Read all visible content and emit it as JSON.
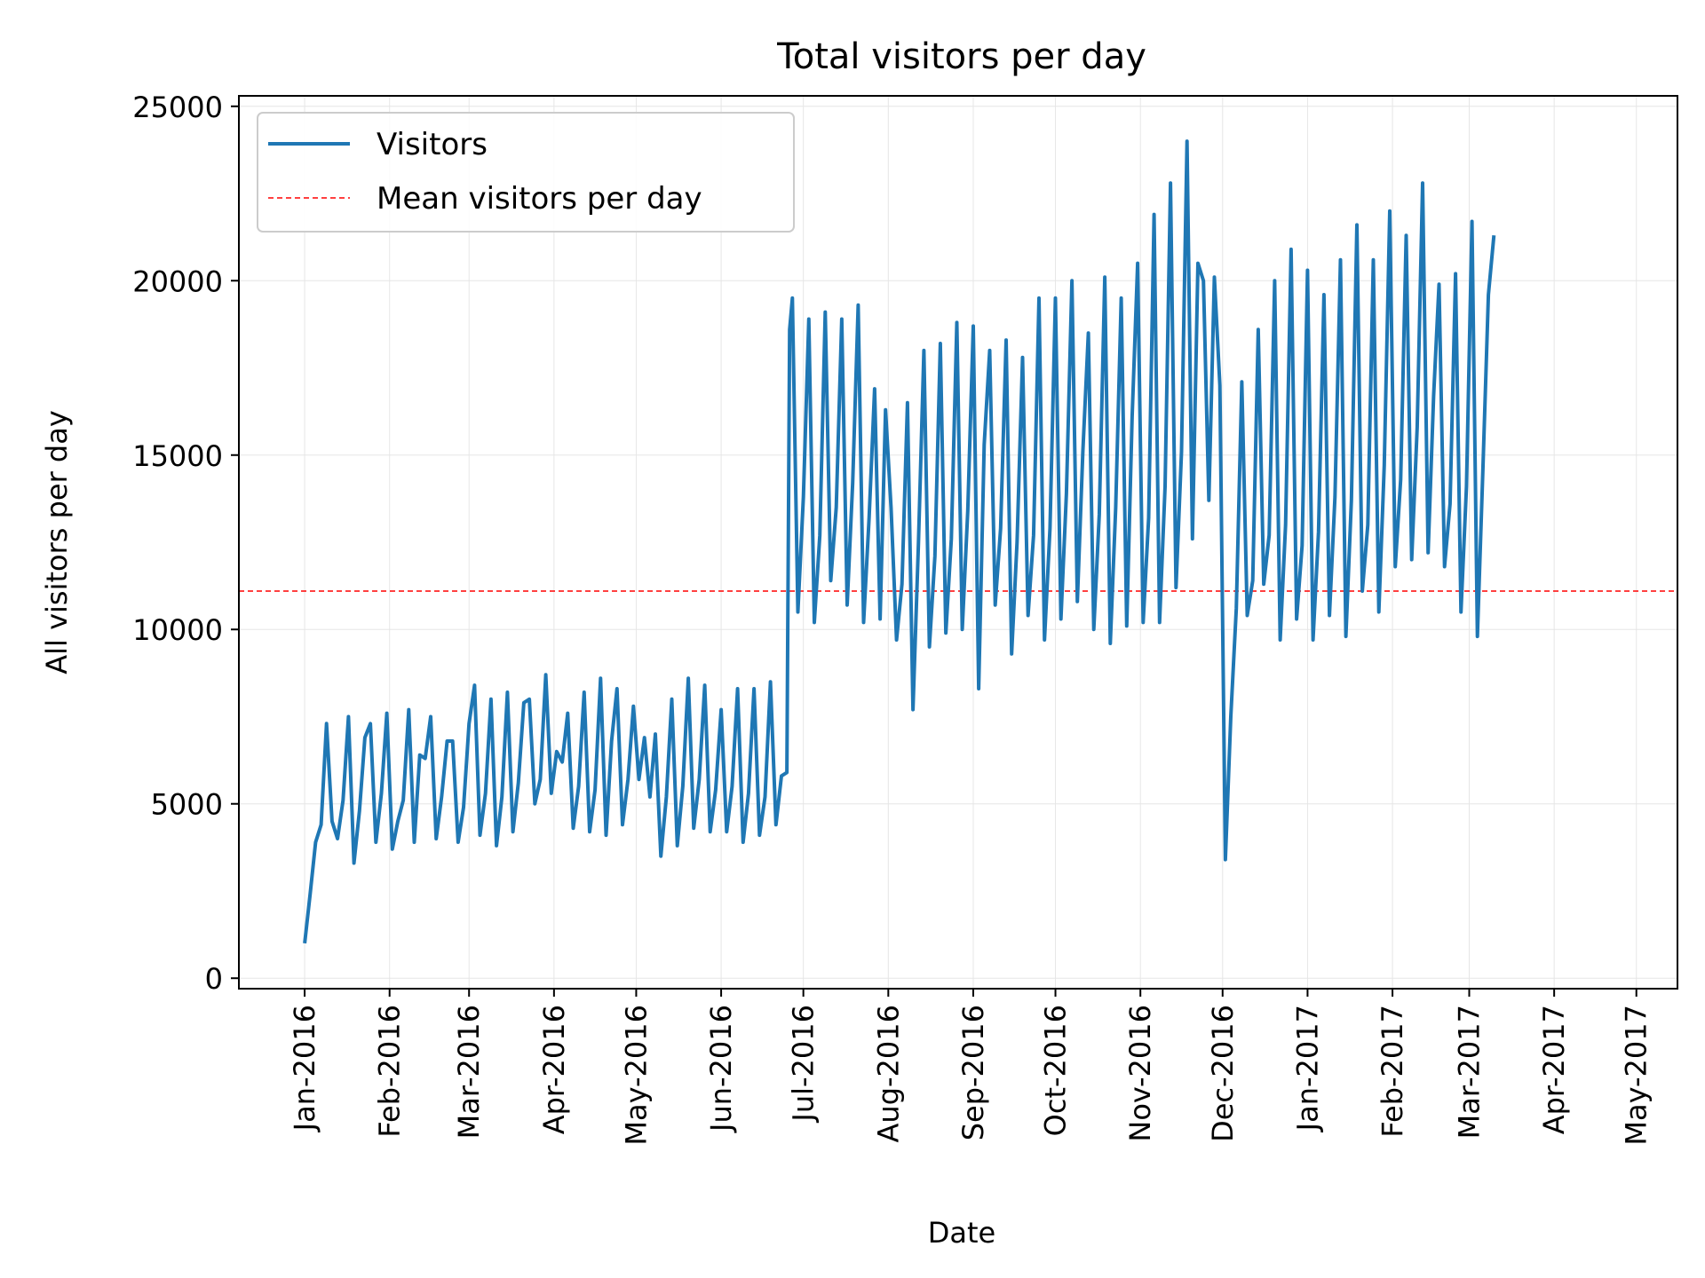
{
  "chart_data": {
    "type": "line",
    "title": "Total visitors per day",
    "xlabel": "Date",
    "ylabel": "All visitors per day",
    "x_tick_labels": [
      "Jan-2016",
      "Feb-2016",
      "Mar-2016",
      "Apr-2016",
      "May-2016",
      "Jun-2016",
      "Jul-2016",
      "Aug-2016",
      "Sep-2016",
      "Oct-2016",
      "Nov-2016",
      "Dec-2016",
      "Jan-2017",
      "Feb-2017",
      "Mar-2017",
      "Apr-2017",
      "May-2017"
    ],
    "x_tick_dates": [
      "2016-01-01",
      "2016-02-01",
      "2016-03-01",
      "2016-04-01",
      "2016-05-01",
      "2016-06-01",
      "2016-07-01",
      "2016-08-01",
      "2016-09-01",
      "2016-10-01",
      "2016-11-01",
      "2016-12-01",
      "2017-01-01",
      "2017-02-01",
      "2017-03-01",
      "2017-04-01",
      "2017-05-01"
    ],
    "y_ticks": [
      0,
      5000,
      10000,
      15000,
      20000,
      25000
    ],
    "xlim": [
      "2015-12-08",
      "2017-05-16"
    ],
    "ylim": [
      -300,
      25300
    ],
    "grid": true,
    "legend_position": "upper-left",
    "series": [
      {
        "name": "Visitors",
        "color": "#1f77b4",
        "style": "solid",
        "points": [
          [
            "2016-01-01",
            1000
          ],
          [
            "2016-01-03",
            2400
          ],
          [
            "2016-01-05",
            3900
          ],
          [
            "2016-01-07",
            4400
          ],
          [
            "2016-01-09",
            7300
          ],
          [
            "2016-01-11",
            4500
          ],
          [
            "2016-01-13",
            4000
          ],
          [
            "2016-01-15",
            5100
          ],
          [
            "2016-01-17",
            7500
          ],
          [
            "2016-01-19",
            3300
          ],
          [
            "2016-01-21",
            4800
          ],
          [
            "2016-01-23",
            6900
          ],
          [
            "2016-01-25",
            7300
          ],
          [
            "2016-01-27",
            3900
          ],
          [
            "2016-01-29",
            5300
          ],
          [
            "2016-01-31",
            7600
          ],
          [
            "2016-02-02",
            3700
          ],
          [
            "2016-02-04",
            4500
          ],
          [
            "2016-02-06",
            5100
          ],
          [
            "2016-02-08",
            7700
          ],
          [
            "2016-02-10",
            3900
          ],
          [
            "2016-02-12",
            6400
          ],
          [
            "2016-02-14",
            6300
          ],
          [
            "2016-02-16",
            7500
          ],
          [
            "2016-02-18",
            4000
          ],
          [
            "2016-02-20",
            5200
          ],
          [
            "2016-02-22",
            6800
          ],
          [
            "2016-02-24",
            6800
          ],
          [
            "2016-02-26",
            3900
          ],
          [
            "2016-02-28",
            4900
          ],
          [
            "2016-03-01",
            7300
          ],
          [
            "2016-03-03",
            8400
          ],
          [
            "2016-03-05",
            4100
          ],
          [
            "2016-03-07",
            5300
          ],
          [
            "2016-03-09",
            8000
          ],
          [
            "2016-03-11",
            3800
          ],
          [
            "2016-03-13",
            5200
          ],
          [
            "2016-03-15",
            8200
          ],
          [
            "2016-03-17",
            4200
          ],
          [
            "2016-03-19",
            5600
          ],
          [
            "2016-03-21",
            7900
          ],
          [
            "2016-03-23",
            8000
          ],
          [
            "2016-03-25",
            5000
          ],
          [
            "2016-03-27",
            5700
          ],
          [
            "2016-03-29",
            8700
          ],
          [
            "2016-03-31",
            5300
          ],
          [
            "2016-04-02",
            6500
          ],
          [
            "2016-04-04",
            6200
          ],
          [
            "2016-04-06",
            7600
          ],
          [
            "2016-04-08",
            4300
          ],
          [
            "2016-04-10",
            5500
          ],
          [
            "2016-04-12",
            8200
          ],
          [
            "2016-04-14",
            4200
          ],
          [
            "2016-04-16",
            5400
          ],
          [
            "2016-04-18",
            8600
          ],
          [
            "2016-04-20",
            4100
          ],
          [
            "2016-04-22",
            6800
          ],
          [
            "2016-04-24",
            8300
          ],
          [
            "2016-04-26",
            4400
          ],
          [
            "2016-04-28",
            5700
          ],
          [
            "2016-04-30",
            7800
          ],
          [
            "2016-05-02",
            5700
          ],
          [
            "2016-05-04",
            6900
          ],
          [
            "2016-05-06",
            5200
          ],
          [
            "2016-05-08",
            7000
          ],
          [
            "2016-05-10",
            3500
          ],
          [
            "2016-05-12",
            5200
          ],
          [
            "2016-05-14",
            8000
          ],
          [
            "2016-05-16",
            3800
          ],
          [
            "2016-05-18",
            5500
          ],
          [
            "2016-05-20",
            8600
          ],
          [
            "2016-05-22",
            4300
          ],
          [
            "2016-05-24",
            5700
          ],
          [
            "2016-05-26",
            8400
          ],
          [
            "2016-05-28",
            4200
          ],
          [
            "2016-05-30",
            5400
          ],
          [
            "2016-06-01",
            7700
          ],
          [
            "2016-06-03",
            4200
          ],
          [
            "2016-06-05",
            5500
          ],
          [
            "2016-06-07",
            8300
          ],
          [
            "2016-06-09",
            3900
          ],
          [
            "2016-06-11",
            5300
          ],
          [
            "2016-06-13",
            8300
          ],
          [
            "2016-06-15",
            4100
          ],
          [
            "2016-06-17",
            5200
          ],
          [
            "2016-06-19",
            8500
          ],
          [
            "2016-06-21",
            4400
          ],
          [
            "2016-06-23",
            5800
          ],
          [
            "2016-06-25",
            5900
          ],
          [
            "2016-06-26",
            18600
          ],
          [
            "2016-06-27",
            19500
          ],
          [
            "2016-06-29",
            10500
          ],
          [
            "2016-07-01",
            13800
          ],
          [
            "2016-07-03",
            18900
          ],
          [
            "2016-07-05",
            10200
          ],
          [
            "2016-07-07",
            12700
          ],
          [
            "2016-07-09",
            19100
          ],
          [
            "2016-07-11",
            11400
          ],
          [
            "2016-07-13",
            13500
          ],
          [
            "2016-07-15",
            18900
          ],
          [
            "2016-07-17",
            10700
          ],
          [
            "2016-07-19",
            14200
          ],
          [
            "2016-07-21",
            19300
          ],
          [
            "2016-07-23",
            10200
          ],
          [
            "2016-07-25",
            13200
          ],
          [
            "2016-07-27",
            16900
          ],
          [
            "2016-07-29",
            10300
          ],
          [
            "2016-07-31",
            16300
          ],
          [
            "2016-08-02",
            13500
          ],
          [
            "2016-08-04",
            9700
          ],
          [
            "2016-08-06",
            11300
          ],
          [
            "2016-08-08",
            16500
          ],
          [
            "2016-08-10",
            7700
          ],
          [
            "2016-08-12",
            12500
          ],
          [
            "2016-08-14",
            18000
          ],
          [
            "2016-08-16",
            9500
          ],
          [
            "2016-08-18",
            12100
          ],
          [
            "2016-08-20",
            18200
          ],
          [
            "2016-08-22",
            9900
          ],
          [
            "2016-08-24",
            12600
          ],
          [
            "2016-08-26",
            18800
          ],
          [
            "2016-08-28",
            10000
          ],
          [
            "2016-08-30",
            13400
          ],
          [
            "2016-09-01",
            18700
          ],
          [
            "2016-09-03",
            8300
          ],
          [
            "2016-09-05",
            15300
          ],
          [
            "2016-09-07",
            18000
          ],
          [
            "2016-09-09",
            10700
          ],
          [
            "2016-09-11",
            12900
          ],
          [
            "2016-09-13",
            18300
          ],
          [
            "2016-09-15",
            9300
          ],
          [
            "2016-09-17",
            12500
          ],
          [
            "2016-09-19",
            17800
          ],
          [
            "2016-09-21",
            10400
          ],
          [
            "2016-09-23",
            12700
          ],
          [
            "2016-09-25",
            19500
          ],
          [
            "2016-09-27",
            9700
          ],
          [
            "2016-09-29",
            12900
          ],
          [
            "2016-10-01",
            19500
          ],
          [
            "2016-10-03",
            10300
          ],
          [
            "2016-10-05",
            13900
          ],
          [
            "2016-10-07",
            20000
          ],
          [
            "2016-10-09",
            10800
          ],
          [
            "2016-10-11",
            15100
          ],
          [
            "2016-10-13",
            18500
          ],
          [
            "2016-10-15",
            10000
          ],
          [
            "2016-10-17",
            13300
          ],
          [
            "2016-10-19",
            20100
          ],
          [
            "2016-10-21",
            9600
          ],
          [
            "2016-10-23",
            13500
          ],
          [
            "2016-10-25",
            19500
          ],
          [
            "2016-10-27",
            10100
          ],
          [
            "2016-10-29",
            16100
          ],
          [
            "2016-10-31",
            20500
          ],
          [
            "2016-11-02",
            10200
          ],
          [
            "2016-11-04",
            13200
          ],
          [
            "2016-11-06",
            21900
          ],
          [
            "2016-11-08",
            10200
          ],
          [
            "2016-11-10",
            14100
          ],
          [
            "2016-11-12",
            22800
          ],
          [
            "2016-11-14",
            11200
          ],
          [
            "2016-11-16",
            15100
          ],
          [
            "2016-11-18",
            24000
          ],
          [
            "2016-11-20",
            12600
          ],
          [
            "2016-11-22",
            20500
          ],
          [
            "2016-11-24",
            20000
          ],
          [
            "2016-11-26",
            13700
          ],
          [
            "2016-11-28",
            20100
          ],
          [
            "2016-11-30",
            17000
          ],
          [
            "2016-12-02",
            3400
          ],
          [
            "2016-12-04",
            7500
          ],
          [
            "2016-12-06",
            10600
          ],
          [
            "2016-12-08",
            17100
          ],
          [
            "2016-12-10",
            10400
          ],
          [
            "2016-12-12",
            11400
          ],
          [
            "2016-12-14",
            18600
          ],
          [
            "2016-12-16",
            11300
          ],
          [
            "2016-12-18",
            12700
          ],
          [
            "2016-12-20",
            20000
          ],
          [
            "2016-12-22",
            9700
          ],
          [
            "2016-12-24",
            13000
          ],
          [
            "2016-12-26",
            20900
          ],
          [
            "2016-12-28",
            10300
          ],
          [
            "2016-12-30",
            12400
          ],
          [
            "2017-01-01",
            20300
          ],
          [
            "2017-01-03",
            9700
          ],
          [
            "2017-01-05",
            12800
          ],
          [
            "2017-01-07",
            19600
          ],
          [
            "2017-01-09",
            10400
          ],
          [
            "2017-01-11",
            13800
          ],
          [
            "2017-01-13",
            20600
          ],
          [
            "2017-01-15",
            9800
          ],
          [
            "2017-01-17",
            13700
          ],
          [
            "2017-01-19",
            21600
          ],
          [
            "2017-01-21",
            11100
          ],
          [
            "2017-01-23",
            13000
          ],
          [
            "2017-01-25",
            20600
          ],
          [
            "2017-01-27",
            10500
          ],
          [
            "2017-01-29",
            14700
          ],
          [
            "2017-01-31",
            22000
          ],
          [
            "2017-02-02",
            11800
          ],
          [
            "2017-02-04",
            14300
          ],
          [
            "2017-02-06",
            21300
          ],
          [
            "2017-02-08",
            12000
          ],
          [
            "2017-02-10",
            15800
          ],
          [
            "2017-02-12",
            22800
          ],
          [
            "2017-02-14",
            12200
          ],
          [
            "2017-02-16",
            16700
          ],
          [
            "2017-02-18",
            19900
          ],
          [
            "2017-02-20",
            11800
          ],
          [
            "2017-02-22",
            13600
          ],
          [
            "2017-02-24",
            20200
          ],
          [
            "2017-02-26",
            10500
          ],
          [
            "2017-02-28",
            14100
          ],
          [
            "2017-03-02",
            21700
          ],
          [
            "2017-03-04",
            9800
          ],
          [
            "2017-03-06",
            14600
          ],
          [
            "2017-03-08",
            19600
          ],
          [
            "2017-03-10",
            21300
          ]
        ]
      },
      {
        "name": "Mean visitors per day",
        "color": "#ff0000",
        "style": "dashed",
        "y": 11100
      }
    ]
  }
}
